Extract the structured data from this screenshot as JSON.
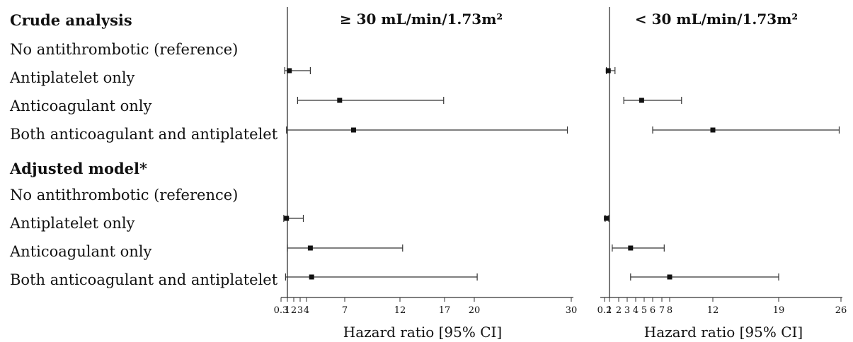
{
  "sections": [
    {
      "heading": "Crude analysis",
      "rows": [
        "No antithrombotic (reference)",
        "Antiplatelet only",
        "Anticoagulant only",
        "Both anticoagulant and antiplatelet"
      ]
    },
    {
      "heading": "Adjusted model*",
      "rows": [
        "No antithrombotic (reference)",
        "Antiplatelet only",
        "Anticoagulant only",
        "Both anticoagulant and antiplatelet"
      ]
    }
  ],
  "chart_data": [
    {
      "type": "forest",
      "title": "≥ 30 mL/min/1.73m²",
      "xlabel": "Hazard ratio [95% CI]",
      "xlim": [
        0.3,
        30
      ],
      "ticks": [
        0.3,
        1,
        2,
        3,
        4,
        7,
        12,
        17,
        20,
        30
      ],
      "tick_labels": [
        "0.3",
        "1",
        "2",
        "3",
        "4",
        "7",
        "12",
        "17",
        "20",
        "30"
      ],
      "reference_line": 1,
      "estimates": [
        {
          "section": "Crude analysis",
          "group": "No antithrombotic (reference)",
          "hr": null,
          "lo": null,
          "hi": null
        },
        {
          "section": "Crude analysis",
          "group": "Antiplatelet only",
          "hr": 1.3,
          "lo": 0.7,
          "hi": 4.3
        },
        {
          "section": "Crude analysis",
          "group": "Anticoagulant only",
          "hr": 6.6,
          "lo": 2.6,
          "hi": 16.9
        },
        {
          "section": "Crude analysis",
          "group": "Both anticoagulant and antiplatelet",
          "hr": 7.8,
          "lo": 0.9,
          "hi": 29.6
        },
        {
          "section": "Adjusted model*",
          "group": "No antithrombotic (reference)",
          "hr": null,
          "lo": null,
          "hi": null
        },
        {
          "section": "Adjusted model*",
          "group": "Antiplatelet only",
          "hr": 0.9,
          "lo": 0.6,
          "hi": 3.5
        },
        {
          "section": "Adjusted model*",
          "group": "Anticoagulant only",
          "hr": 4.3,
          "lo": 1.0,
          "hi": 12.3
        },
        {
          "section": "Adjusted model*",
          "group": "Both anticoagulant and antiplatelet",
          "hr": 4.4,
          "lo": 0.8,
          "hi": 20.3
        }
      ]
    },
    {
      "type": "forest",
      "title": "< 30 mL/min/1.73m²",
      "xlabel": "Hazard ratio [95% CI]",
      "xlim": [
        0.2,
        26
      ],
      "ticks": [
        0.2,
        1,
        2,
        3,
        4,
        5,
        6,
        7,
        8,
        12,
        19,
        26
      ],
      "tick_labels": [
        "0.2",
        "1",
        "2",
        "3",
        "4",
        "5",
        "6",
        "7",
        "8",
        "12",
        "19",
        "26"
      ],
      "reference_line": 1,
      "estimates": [
        {
          "section": "Crude analysis",
          "group": "No antithrombotic (reference)",
          "hr": null,
          "lo": null,
          "hi": null
        },
        {
          "section": "Crude analysis",
          "group": "Antiplatelet only",
          "hr": 0.8,
          "lo": 0.5,
          "hi": 1.6
        },
        {
          "section": "Crude analysis",
          "group": "Anticoagulant only",
          "hr": 4.7,
          "lo": 2.6,
          "hi": 9.1
        },
        {
          "section": "Crude analysis",
          "group": "Both anticoagulant and antiplatelet",
          "hr": 12.0,
          "lo": 6.0,
          "hi": 25.8
        },
        {
          "section": "Adjusted model*",
          "group": "No antithrombotic (reference)",
          "hr": null,
          "lo": null,
          "hi": null
        },
        {
          "section": "Adjusted model*",
          "group": "Antiplatelet only",
          "hr": 0.5,
          "lo": 0.3,
          "hi": 0.9
        },
        {
          "section": "Adjusted model*",
          "group": "Anticoagulant only",
          "hr": 3.4,
          "lo": 1.3,
          "hi": 7.3
        },
        {
          "section": "Adjusted model*",
          "group": "Both anticoagulant and antiplatelet",
          "hr": 8.0,
          "lo": 3.4,
          "hi": 19.0
        }
      ]
    }
  ]
}
